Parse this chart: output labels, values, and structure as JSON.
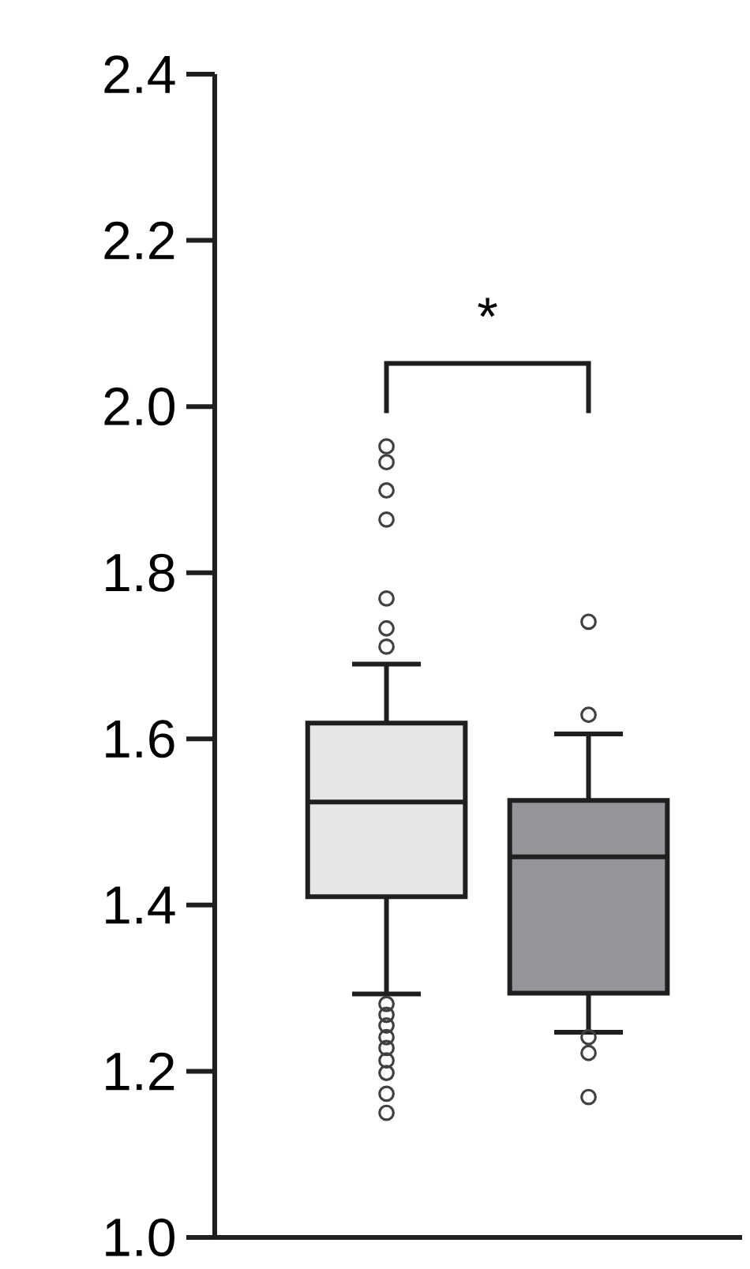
{
  "chart_data": {
    "type": "box",
    "categories": [
      null,
      null
    ],
    "colors": [
      "#e5e6e8",
      "#939598"
    ],
    "boxes": [
      {
        "low": 1.293,
        "q1": 1.41,
        "median": 1.524,
        "q3": 1.619,
        "high": 1.69,
        "outliers": [
          1.952,
          1.933,
          1.899,
          1.864,
          1.769,
          1.733,
          1.711,
          1.281,
          1.268,
          1.255,
          1.241,
          1.228,
          1.213,
          1.198,
          1.173,
          1.15
        ]
      },
      {
        "low": 1.247,
        "q1": 1.294,
        "median": 1.458,
        "q3": 1.526,
        "high": 1.606,
        "outliers": [
          1.741,
          1.629,
          1.241,
          1.222,
          1.169
        ]
      }
    ],
    "ylim": [
      1.0,
      2.4
    ],
    "yticks": [
      {
        "value": 1.0,
        "label": "1.0"
      },
      1.2,
      1.4,
      1.6,
      1.8,
      {
        "value": 2.0,
        "label": "2.0"
      },
      2.2,
      2.4
    ],
    "tick_labels": "y",
    "marker": "circle",
    "annotations": [
      "*"
    ]
  }
}
